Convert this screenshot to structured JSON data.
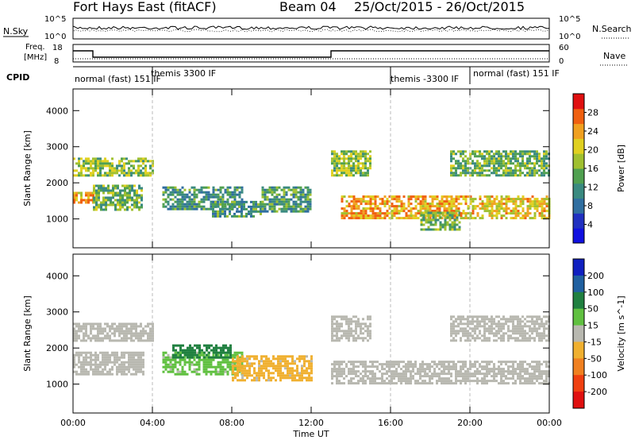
{
  "header": {
    "station": "Fort Hays East (fitACF)",
    "beam": "Beam 04",
    "date_range": "25/Oct/2015 - 26/Oct/2015"
  },
  "top_strips": {
    "nsky_label": "N.Sky",
    "nsky_ticks": [
      "10^5",
      "10^0"
    ],
    "nsearch_label": "N.Search",
    "nsearch_ticks": [
      "10^5",
      "10^0"
    ],
    "freq_label_line1": "Freq.",
    "freq_label_line2": "[MHz]",
    "freq_ticks": [
      "18",
      "8"
    ],
    "nave_label": "Nave",
    "nave_ticks": [
      "60",
      "0"
    ],
    "cpid_label": "CPID",
    "cpid_segments": [
      {
        "label": "normal (fast) 151 IF",
        "start_hour": 0,
        "end_hour": 4
      },
      {
        "label": "themis 3300 IF",
        "start_hour": 4,
        "end_hour": 16
      },
      {
        "label": "themis -3300 IF",
        "start_hour": 16,
        "end_hour": 20
      },
      {
        "label": "normal (fast) 151 IF",
        "start_hour": 20,
        "end_hour": 24
      }
    ]
  },
  "x_axis": {
    "label": "Time UT",
    "ticks": [
      "00:00",
      "04:00",
      "08:00",
      "12:00",
      "16:00",
      "20:00",
      "00:00"
    ]
  },
  "chart_data": [
    {
      "type": "heatmap",
      "panel": "power",
      "xlabel": "Time UT",
      "ylabel": "Slant Range [km]",
      "xlim": [
        0,
        24
      ],
      "ylim": [
        200,
        4600
      ],
      "yticks": [
        "1000",
        "2000",
        "3000",
        "4000"
      ],
      "colorbar": {
        "label": "Power [dB]",
        "ticks": [
          "4",
          "8",
          "12",
          "16",
          "20",
          "24",
          "28"
        ],
        "range": [
          0,
          30
        ],
        "colors": [
          "#1010e0",
          "#2030c0",
          "#306ea0",
          "#3a8a80",
          "#50a050",
          "#a0c030",
          "#e0d020",
          "#f0a020",
          "#f06010",
          "#e01010"
        ]
      },
      "echo_bands": [
        {
          "t0": 0.0,
          "t1": 4.0,
          "r0": 2200,
          "r1": 2700,
          "level": 16
        },
        {
          "t0": 0.0,
          "t1": 1.0,
          "r0": 1450,
          "r1": 1750,
          "level": 22
        },
        {
          "t0": 1.0,
          "t1": 3.5,
          "r0": 1250,
          "r1": 1950,
          "level": 14
        },
        {
          "t0": 4.5,
          "t1": 8.5,
          "r0": 1300,
          "r1": 1900,
          "level": 11
        },
        {
          "t0": 7.0,
          "t1": 9.5,
          "r0": 1100,
          "r1": 1500,
          "level": 12
        },
        {
          "t0": 9.5,
          "t1": 12.0,
          "r0": 1200,
          "r1": 1900,
          "level": 12
        },
        {
          "t0": 13.0,
          "t1": 15.0,
          "r0": 2200,
          "r1": 2900,
          "level": 16
        },
        {
          "t0": 13.5,
          "t1": 19.5,
          "r0": 1000,
          "r1": 1650,
          "level": 22
        },
        {
          "t0": 17.5,
          "t1": 19.5,
          "r0": 700,
          "r1": 1200,
          "level": 14
        },
        {
          "t0": 19.5,
          "t1": 24.0,
          "r0": 1050,
          "r1": 1650,
          "level": 20
        },
        {
          "t0": 19.0,
          "t1": 24.0,
          "r0": 2200,
          "r1": 2900,
          "level": 14
        }
      ]
    },
    {
      "type": "heatmap",
      "panel": "velocity",
      "xlabel": "Time UT",
      "ylabel": "Slant Range [km]",
      "xlim": [
        0,
        24
      ],
      "ylim": [
        200,
        4600
      ],
      "yticks": [
        "1000",
        "2000",
        "3000",
        "4000"
      ],
      "colorbar": {
        "label": "Velocity [m s^-1]",
        "ticks": [
          "200",
          "100",
          "50",
          "15",
          "-15",
          "-50",
          "-100",
          "-200"
        ],
        "range": [
          -250,
          250
        ],
        "colors": [
          "#1020c0",
          "#2060a0",
          "#208040",
          "#60c040",
          "#b8b8b0",
          "#f0b030",
          "#f08020",
          "#f04010",
          "#e01010"
        ]
      },
      "echo_bands": [
        {
          "t0": 0.0,
          "t1": 4.0,
          "r0": 2200,
          "r1": 2700,
          "level": 0
        },
        {
          "t0": 0.0,
          "t1": 3.5,
          "r0": 1300,
          "r1": 1900,
          "level": 0
        },
        {
          "t0": 4.5,
          "t1": 8.5,
          "r0": 1300,
          "r1": 1900,
          "level": 40
        },
        {
          "t0": 5.0,
          "t1": 8.0,
          "r0": 1750,
          "r1": 2100,
          "level": 120
        },
        {
          "t0": 8.0,
          "t1": 12.0,
          "r0": 1100,
          "r1": 1800,
          "level": -40
        },
        {
          "t0": 13.0,
          "t1": 15.0,
          "r0": 2200,
          "r1": 2900,
          "level": 0
        },
        {
          "t0": 13.0,
          "t1": 24.0,
          "r0": 1000,
          "r1": 1650,
          "level": 0
        },
        {
          "t0": 19.0,
          "t1": 24.0,
          "r0": 2200,
          "r1": 2900,
          "level": 0
        }
      ]
    }
  ]
}
